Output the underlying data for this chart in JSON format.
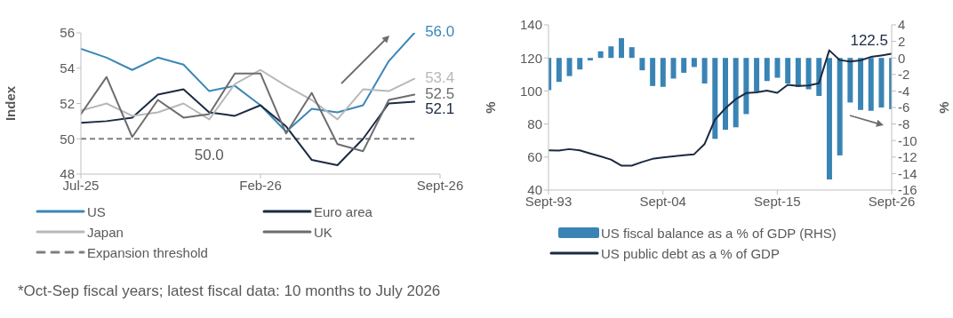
{
  "chart_data": [
    {
      "type": "line",
      "ylabel": "Index",
      "x": [
        "2025-07",
        "2025-08",
        "2025-09",
        "2025-10",
        "2025-11",
        "2025-12",
        "2026-01",
        "2026-02",
        "2026-03",
        "2026-04",
        "2026-05",
        "2026-06",
        "2026-07",
        "2026-08"
      ],
      "xlim": [
        "2025-07",
        "2026-09"
      ],
      "xticks": [
        {
          "value": "2025-07",
          "label": "Jul-25"
        },
        {
          "value": "2026-02",
          "label": "Feb-26"
        },
        {
          "value": "2026-09",
          "label": "Sept-26"
        }
      ],
      "ylim": [
        48,
        56
      ],
      "yticks": [
        48,
        50,
        52,
        54,
        56
      ],
      "legend": "bottom",
      "series": [
        {
          "name": "US",
          "color": "#3a87b8",
          "values": [
            55.1,
            54.6,
            53.9,
            54.6,
            54.2,
            52.7,
            53.0,
            51.9,
            50.4,
            51.7,
            51.5,
            51.9,
            54.4,
            56.0
          ],
          "value_labels": [
            null,
            null,
            null,
            null,
            null,
            null,
            null,
            null,
            null,
            null,
            null,
            null,
            null,
            "56.0"
          ]
        },
        {
          "name": "Euro area",
          "color": "#1b2a41",
          "values": [
            50.9,
            51.0,
            51.2,
            52.5,
            52.8,
            51.5,
            51.3,
            51.9,
            50.7,
            48.8,
            48.5,
            50.0,
            52.0,
            52.1
          ],
          "value_labels": [
            null,
            null,
            null,
            null,
            null,
            null,
            null,
            null,
            null,
            null,
            null,
            null,
            null,
            "52.1"
          ]
        },
        {
          "name": "Japan",
          "color": "#b8b8b8",
          "values": [
            51.6,
            52.0,
            51.3,
            51.5,
            52.0,
            51.1,
            53.1,
            53.9,
            53.0,
            52.2,
            51.1,
            52.8,
            52.7,
            53.4
          ],
          "value_labels": [
            null,
            null,
            null,
            null,
            null,
            null,
            null,
            null,
            null,
            null,
            null,
            null,
            null,
            "53.4"
          ]
        },
        {
          "name": "UK",
          "color": "#6d6d6d",
          "values": [
            51.4,
            53.5,
            50.1,
            52.2,
            51.2,
            51.4,
            53.7,
            53.7,
            50.3,
            52.6,
            49.7,
            49.3,
            52.2,
            52.5
          ],
          "value_labels": [
            null,
            null,
            null,
            null,
            null,
            null,
            null,
            null,
            null,
            null,
            null,
            null,
            null,
            "52.5"
          ]
        }
      ],
      "ref_lines": [
        {
          "axis": "y",
          "value": 50,
          "label": "Expansion threshold",
          "color": "#7f7f7f",
          "line_style": "dashed"
        }
      ],
      "annotations": [
        "50.0"
      ]
    },
    {
      "type": "bar",
      "ylabel": "%",
      "y2label": "%",
      "x": [
        "1993-09",
        "1994-09",
        "1995-09",
        "1996-09",
        "1997-09",
        "1998-09",
        "1999-09",
        "2000-09",
        "2001-09",
        "2002-09",
        "2003-09",
        "2004-09",
        "2005-09",
        "2006-09",
        "2007-09",
        "2008-09",
        "2009-09",
        "2010-09",
        "2011-09",
        "2012-09",
        "2013-09",
        "2014-09",
        "2015-09",
        "2016-09",
        "2017-09",
        "2018-09",
        "2019-09",
        "2020-09",
        "2021-09",
        "2022-09",
        "2023-09",
        "2024-09",
        "2025-09",
        "2026-09"
      ],
      "xlim": [
        "1993-09",
        "2026-09"
      ],
      "xticks": [
        {
          "value": "1993-09",
          "label": "Sept-93"
        },
        {
          "value": "2004-09",
          "label": "Sept-04"
        },
        {
          "value": "2015-09",
          "label": "Sept-15"
        },
        {
          "value": "2026-09",
          "label": "Sept-26"
        }
      ],
      "ylim": [
        40,
        140
      ],
      "yticks": [
        40,
        60,
        80,
        100,
        120,
        140
      ],
      "y2lim": [
        -16,
        4
      ],
      "y2ticks": [
        -16,
        -14,
        -12,
        -10,
        -8,
        -6,
        -4,
        -2,
        0,
        2,
        4
      ],
      "legend": "bottom",
      "series": [
        {
          "name": "US fiscal balance as a % of GDP (RHS)",
          "axis": "y2",
          "color": "#3a84b5",
          "values": [
            -3.9,
            -2.9,
            -2.2,
            -1.4,
            -0.3,
            0.8,
            1.4,
            2.4,
            1.3,
            -1.5,
            -3.4,
            -3.5,
            -2.5,
            -1.8,
            -1.1,
            -3.1,
            -9.8,
            -8.7,
            -8.4,
            -6.8,
            -4.1,
            -2.8,
            -2.4,
            -3.1,
            -3.5,
            -3.8,
            -4.6,
            -14.7,
            -11.8,
            -5.4,
            -6.3,
            -6.4,
            -6.0,
            -6.2
          ]
        },
        {
          "name": "US public debt as a % of GDP",
          "type": "line",
          "color": "#1b2a41",
          "values": [
            64.1,
            63.9,
            64.8,
            64.1,
            62.2,
            60.4,
            58.5,
            54.8,
            54.8,
            57.0,
            58.9,
            59.8,
            60.4,
            61.1,
            61.7,
            67.8,
            82.6,
            89.4,
            95.0,
            98.7,
            99.1,
            100.2,
            98.9,
            103.7,
            103.0,
            103.3,
            104.6,
            124.6,
            118.7,
            117.8,
            118.5,
            120.6,
            121.5,
            122.5
          ],
          "value_labels": [
            null,
            null,
            null,
            null,
            null,
            null,
            null,
            null,
            null,
            null,
            null,
            null,
            null,
            null,
            null,
            null,
            null,
            null,
            null,
            null,
            null,
            null,
            null,
            null,
            null,
            null,
            null,
            null,
            null,
            null,
            null,
            null,
            null,
            "122.5"
          ]
        }
      ],
      "annotations": [
        "*Oct-Sep fiscal years; latest fiscal data: 10 months to July 2026"
      ]
    }
  ]
}
